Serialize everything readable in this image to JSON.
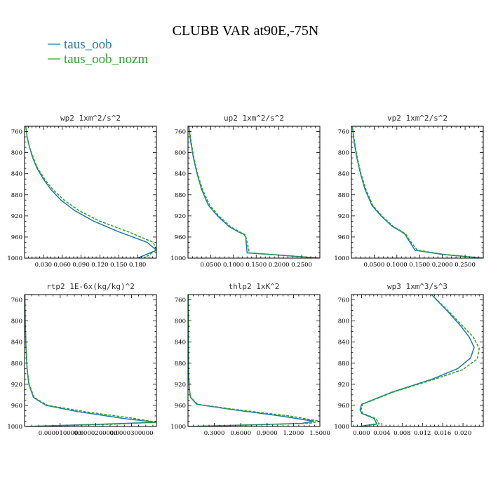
{
  "figure": {
    "title": "CLUBB VAR at90E,-75N"
  },
  "colors": {
    "taus_oob": "#1f77b4",
    "taus_oob_nozm": "#2ca02c"
  },
  "legend": [
    {
      "label": "taus_oob",
      "color": "#1f77b4"
    },
    {
      "label": "taus_oob_nozm",
      "color": "#2ca02c"
    }
  ],
  "chart_data": [
    {
      "type": "line",
      "title": "wp2   1xm^2/s^2",
      "xlim": [
        0.0,
        0.21
      ],
      "ylim": [
        1000,
        750
      ],
      "x_ticks": [
        0.03,
        0.06,
        0.09,
        0.12,
        0.15,
        0.18
      ],
      "x_tick_labels": [
        "0.030",
        "0.060",
        "0.090",
        "0.120",
        "0.150",
        "0.180"
      ],
      "y_ticks": [
        760,
        800,
        840,
        880,
        920,
        960,
        1000
      ],
      "y_tick_labels": [
        "760",
        "800",
        "840",
        "880",
        "920",
        "960",
        "1000"
      ],
      "series": [
        {
          "name": "taus_oob",
          "style": "solid",
          "x": [
            0.002,
            0.004,
            0.008,
            0.013,
            0.02,
            0.03,
            0.042,
            0.058,
            0.08,
            0.11,
            0.15,
            0.195,
            0.21,
            0.18
          ],
          "y": [
            750,
            770,
            790,
            810,
            830,
            850,
            870,
            890,
            910,
            930,
            950,
            970,
            985,
            1000
          ]
        },
        {
          "name": "taus_oob_nozm",
          "style": "dashed",
          "x": [
            0.002,
            0.004,
            0.008,
            0.014,
            0.021,
            0.032,
            0.045,
            0.063,
            0.087,
            0.12,
            0.165,
            0.205,
            0.21,
            0.19
          ],
          "y": [
            750,
            770,
            790,
            810,
            830,
            850,
            870,
            890,
            910,
            930,
            950,
            970,
            985,
            1000
          ]
        }
      ]
    },
    {
      "type": "line",
      "title": "up2   1xm^2/s^2",
      "xlim": [
        0.0,
        0.29
      ],
      "ylim": [
        1000,
        750
      ],
      "x_ticks": [
        0.05,
        0.1,
        0.15,
        0.2,
        0.25
      ],
      "x_tick_labels": [
        "0.0500",
        "0.1000",
        "0.1500",
        "0.2000",
        "0.2500"
      ],
      "y_ticks": [
        760,
        800,
        840,
        880,
        920,
        960,
        1000
      ],
      "y_tick_labels": [
        "760",
        "800",
        "840",
        "880",
        "920",
        "960",
        "1000"
      ],
      "series": [
        {
          "name": "taus_oob",
          "style": "solid",
          "x": [
            0.002,
            0.006,
            0.012,
            0.02,
            0.03,
            0.045,
            0.065,
            0.09,
            0.11,
            0.123,
            0.127,
            0.13,
            0.18,
            0.29
          ],
          "y": [
            750,
            780,
            810,
            840,
            870,
            900,
            920,
            940,
            950,
            955,
            960,
            990,
            993,
            1000
          ]
        },
        {
          "name": "taus_oob_nozm",
          "style": "dashed",
          "x": [
            0.002,
            0.007,
            0.013,
            0.021,
            0.032,
            0.048,
            0.068,
            0.093,
            0.113,
            0.125,
            0.128,
            0.135,
            0.185,
            0.29
          ],
          "y": [
            750,
            780,
            810,
            840,
            870,
            900,
            920,
            940,
            950,
            955,
            962,
            990,
            993,
            1000
          ]
        }
      ]
    },
    {
      "type": "line",
      "title": "vp2   1xm^2/s^2",
      "xlim": [
        0.0,
        0.29
      ],
      "ylim": [
        1000,
        750
      ],
      "x_ticks": [
        0.05,
        0.1,
        0.15,
        0.2,
        0.25
      ],
      "x_tick_labels": [
        "0.0500",
        "0.1000",
        "0.1500",
        "0.2000",
        "0.2500"
      ],
      "y_ticks": [
        760,
        800,
        840,
        880,
        920,
        960,
        1000
      ],
      "y_tick_labels": [
        "760",
        "800",
        "840",
        "880",
        "920",
        "960",
        "1000"
      ],
      "series": [
        {
          "name": "taus_oob",
          "style": "solid",
          "x": [
            0.002,
            0.006,
            0.012,
            0.02,
            0.03,
            0.045,
            0.065,
            0.09,
            0.11,
            0.118,
            0.125,
            0.14,
            0.2,
            0.29
          ],
          "y": [
            750,
            780,
            810,
            840,
            870,
            900,
            920,
            940,
            950,
            955,
            965,
            985,
            993,
            1000
          ]
        },
        {
          "name": "taus_oob_nozm",
          "style": "dashed",
          "x": [
            0.002,
            0.007,
            0.013,
            0.021,
            0.032,
            0.047,
            0.067,
            0.092,
            0.112,
            0.12,
            0.127,
            0.145,
            0.205,
            0.29
          ],
          "y": [
            750,
            780,
            810,
            840,
            870,
            900,
            920,
            940,
            950,
            955,
            965,
            985,
            993,
            1000
          ]
        }
      ]
    },
    {
      "type": "line",
      "title": "rtp2   1E-6x(kg/kg)^2",
      "xlim": [
        0.0,
        3.7e-05
      ],
      "ylim": [
        1000,
        750
      ],
      "x_ticks": [
        1e-05,
        2e-05,
        3e-05
      ],
      "x_tick_labels": [
        "0.0000100000",
        "0.0000200000",
        "0.0000300000"
      ],
      "y_ticks": [
        760,
        800,
        840,
        880,
        920,
        960,
        1000
      ],
      "y_tick_labels": [
        "760",
        "800",
        "840",
        "880",
        "920",
        "960",
        "1000"
      ],
      "series": [
        {
          "name": "taus_oob",
          "style": "solid",
          "x": [
            1e-07,
            2e-07,
            4e-07,
            7e-07,
            1.2e-06,
            2.5e-06,
            6e-06,
            1.5e-05,
            2.8e-05,
            3.7e-05,
            2e-05,
            5e-07
          ],
          "y": [
            750,
            800,
            850,
            890,
            920,
            945,
            960,
            972,
            985,
            992,
            996,
            1000
          ]
        },
        {
          "name": "taus_oob_nozm",
          "style": "dashed",
          "x": [
            1e-07,
            2e-07,
            4e-07,
            7e-07,
            1.3e-06,
            2.7e-06,
            6.5e-06,
            1.7e-05,
            3.1e-05,
            3.7e-05,
            2.4e-05,
            5e-07
          ],
          "y": [
            750,
            800,
            850,
            890,
            920,
            945,
            960,
            972,
            985,
            992,
            996,
            1000
          ]
        }
      ]
    },
    {
      "type": "line",
      "title": "thlp2   1xK^2",
      "xlim": [
        0.0,
        1.5
      ],
      "ylim": [
        1000,
        750
      ],
      "x_ticks": [
        0.3,
        0.6,
        0.9,
        1.2,
        1.5
      ],
      "x_tick_labels": [
        "0.3000",
        "0.6000",
        "0.9000",
        "1.2000",
        "1.5000"
      ],
      "y_ticks": [
        760,
        800,
        840,
        880,
        920,
        960,
        1000
      ],
      "y_tick_labels": [
        "760",
        "800",
        "840",
        "880",
        "920",
        "960",
        "1000"
      ],
      "series": [
        {
          "name": "taus_oob",
          "style": "solid",
          "x": [
            0.003,
            0.005,
            0.008,
            0.015,
            0.03,
            0.1,
            0.5,
            1.05,
            1.43,
            1.3,
            0.7,
            0.01
          ],
          "y": [
            750,
            850,
            900,
            930,
            945,
            958,
            968,
            980,
            990,
            994,
            997,
            1000
          ]
        },
        {
          "name": "taus_oob_nozm",
          "style": "dashed",
          "x": [
            0.003,
            0.005,
            0.008,
            0.016,
            0.032,
            0.11,
            0.55,
            1.15,
            1.5,
            1.38,
            0.75,
            0.01
          ],
          "y": [
            750,
            850,
            900,
            930,
            945,
            958,
            968,
            980,
            990,
            994,
            997,
            1000
          ]
        }
      ]
    },
    {
      "type": "line",
      "title": "wp3   1xm^3/s^3",
      "xlim": [
        -0.002,
        0.024
      ],
      "ylim": [
        1000,
        750
      ],
      "x_ticks": [
        0.0,
        0.004,
        0.008,
        0.012,
        0.016,
        0.02
      ],
      "x_tick_labels": [
        "0.000",
        "0.004",
        "0.008",
        "0.012",
        "0.016",
        "0.020"
      ],
      "y_ticks": [
        760,
        800,
        840,
        880,
        920,
        960,
        1000
      ],
      "y_tick_labels": [
        "760",
        "800",
        "840",
        "880",
        "920",
        "960",
        "1000"
      ],
      "series": [
        {
          "name": "taus_oob",
          "style": "solid",
          "x": [
            0.0138,
            0.0168,
            0.0196,
            0.0212,
            0.0222,
            0.0215,
            0.019,
            0.014,
            0.006,
            0.0,
            -0.0003,
            0.0,
            0.0025,
            0.003,
            -0.0005
          ],
          "y": [
            750,
            780,
            810,
            830,
            850,
            870,
            890,
            910,
            935,
            958,
            968,
            975,
            985,
            995,
            1000
          ]
        },
        {
          "name": "taus_oob_nozm",
          "style": "dashed",
          "x": [
            0.0138,
            0.017,
            0.02,
            0.022,
            0.0232,
            0.0228,
            0.02,
            0.0145,
            0.0062,
            0.0002,
            -0.0001,
            0.0002,
            0.0028,
            0.0035,
            -0.0002
          ],
          "y": [
            750,
            780,
            810,
            830,
            852,
            872,
            892,
            910,
            935,
            958,
            968,
            975,
            985,
            995,
            1000
          ]
        }
      ]
    }
  ]
}
